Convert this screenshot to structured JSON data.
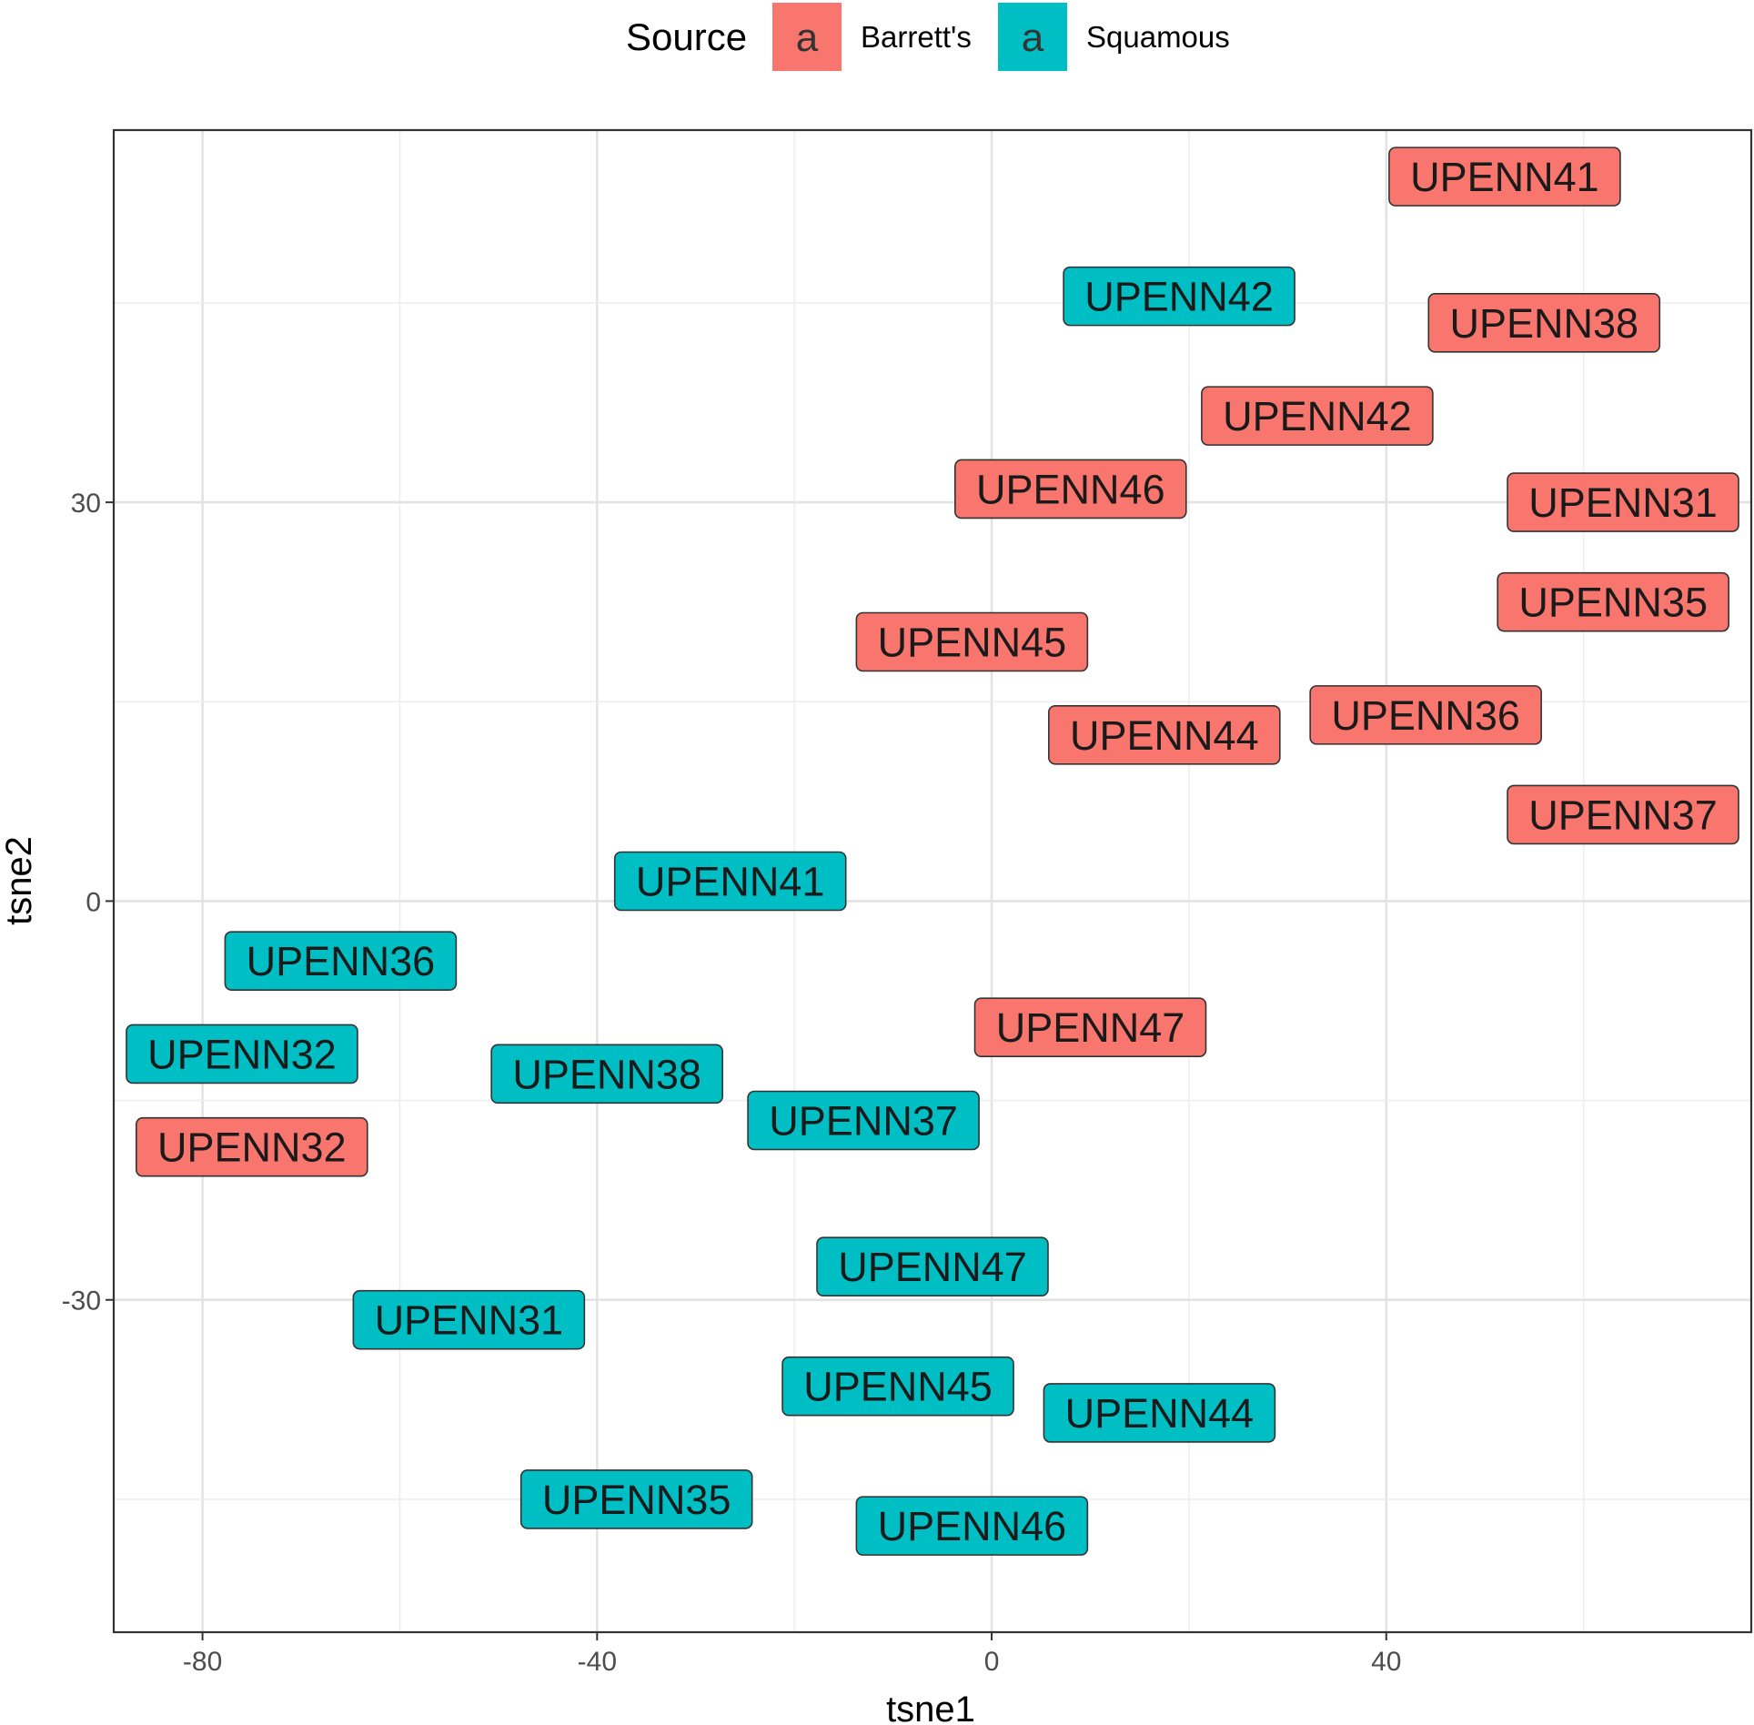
{
  "chart_data": {
    "type": "scatter",
    "xlabel": "tsne1",
    "ylabel": "tsne2",
    "xlim": [
      -89,
      77
    ],
    "ylim": [
      -55,
      58
    ],
    "x_ticks": [
      -80,
      -40,
      0,
      40
    ],
    "y_ticks": [
      -30,
      0,
      30
    ],
    "x_tick_labels": [
      "-80",
      "-40",
      "0",
      "40"
    ],
    "y_tick_labels": [
      "-30",
      "0",
      "30"
    ],
    "grid": true,
    "legend": {
      "title": "Source",
      "position": "top",
      "key_glyph": "a",
      "entries": [
        {
          "label": "Barrett's",
          "color": "#F8766D"
        },
        {
          "label": "Squamous",
          "color": "#00BFC4"
        }
      ]
    },
    "series": [
      {
        "name": "Barrett's",
        "color": "#F8766D",
        "points": [
          {
            "x": 52,
            "y": 54.5,
            "label": "UPENN41"
          },
          {
            "x": 56,
            "y": 43.5,
            "label": "UPENN38"
          },
          {
            "x": 33,
            "y": 36.5,
            "label": "UPENN42"
          },
          {
            "x": 8,
            "y": 31,
            "label": "UPENN46"
          },
          {
            "x": 64,
            "y": 30,
            "label": "UPENN31"
          },
          {
            "x": 63,
            "y": 22.5,
            "label": "UPENN35"
          },
          {
            "x": -2,
            "y": 19.5,
            "label": "UPENN45"
          },
          {
            "x": 44,
            "y": 14,
            "label": "UPENN36"
          },
          {
            "x": 17.5,
            "y": 12.5,
            "label": "UPENN44"
          },
          {
            "x": 64,
            "y": 6.5,
            "label": "UPENN37"
          },
          {
            "x": 10,
            "y": -9.5,
            "label": "UPENN47"
          },
          {
            "x": -75,
            "y": -18.5,
            "label": "UPENN32"
          }
        ]
      },
      {
        "name": "Squamous",
        "color": "#00BFC4",
        "points": [
          {
            "x": 19,
            "y": 45.5,
            "label": "UPENN42"
          },
          {
            "x": -26.5,
            "y": 1.5,
            "label": "UPENN41"
          },
          {
            "x": -66,
            "y": -4.5,
            "label": "UPENN36"
          },
          {
            "x": -76,
            "y": -11.5,
            "label": "UPENN32"
          },
          {
            "x": -39,
            "y": -13,
            "label": "UPENN38"
          },
          {
            "x": -13,
            "y": -16.5,
            "label": "UPENN37"
          },
          {
            "x": -6,
            "y": -27.5,
            "label": "UPENN47"
          },
          {
            "x": -53,
            "y": -31.5,
            "label": "UPENN31"
          },
          {
            "x": -9.5,
            "y": -36.5,
            "label": "UPENN45"
          },
          {
            "x": 17,
            "y": -38.5,
            "label": "UPENN44"
          },
          {
            "x": -36,
            "y": -45,
            "label": "UPENN35"
          },
          {
            "x": -2,
            "y": -47,
            "label": "UPENN46"
          }
        ]
      }
    ]
  }
}
